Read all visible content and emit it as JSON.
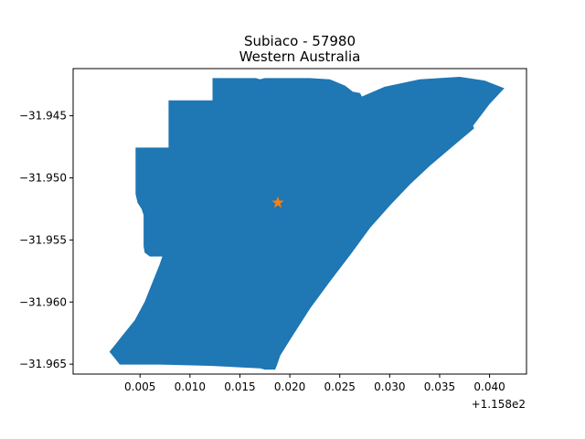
{
  "figure": {
    "title_line1": "Subiaco - 57980",
    "title_line2": "Western Australia",
    "x_offset_label": "+1.158e2"
  },
  "colors": {
    "region_fill": "#1f77b4",
    "marker": "#ff7f0e",
    "axis": "#000000",
    "background": "#ffffff"
  },
  "chart_data": {
    "type": "map",
    "title": "Subiaco - 57980\nWestern Australia",
    "x_offset": 115.8,
    "xlim": [
      -0.0017,
      0.0437
    ],
    "ylim": [
      -31.9658,
      -31.9412
    ],
    "x_ticks": [
      {
        "value": 0.005,
        "label": "0.005"
      },
      {
        "value": 0.01,
        "label": "0.010"
      },
      {
        "value": 0.015,
        "label": "0.015"
      },
      {
        "value": 0.02,
        "label": "0.020"
      },
      {
        "value": 0.025,
        "label": "0.025"
      },
      {
        "value": 0.03,
        "label": "0.030"
      },
      {
        "value": 0.035,
        "label": "0.035"
      },
      {
        "value": 0.04,
        "label": "0.040"
      }
    ],
    "y_ticks": [
      {
        "value": -31.945,
        "label": "−31.945"
      },
      {
        "value": -31.95,
        "label": "−31.950"
      },
      {
        "value": -31.955,
        "label": "−31.955"
      },
      {
        "value": -31.96,
        "label": "−31.960"
      },
      {
        "value": -31.965,
        "label": "−31.965"
      }
    ],
    "region_polygon": [
      [
        0.0123,
        -31.942
      ],
      [
        0.0166,
        -31.942
      ],
      [
        0.017,
        -31.9421
      ],
      [
        0.0175,
        -31.942
      ],
      [
        0.022,
        -31.942
      ],
      [
        0.024,
        -31.9421
      ],
      [
        0.0255,
        -31.9426
      ],
      [
        0.0263,
        -31.9431
      ],
      [
        0.027,
        -31.9432
      ],
      [
        0.0272,
        -31.9435
      ],
      [
        0.0295,
        -31.9427
      ],
      [
        0.033,
        -31.9421
      ],
      [
        0.037,
        -31.9419
      ],
      [
        0.0395,
        -31.9422
      ],
      [
        0.0414,
        -31.9428
      ],
      [
        0.04,
        -31.944
      ],
      [
        0.0383,
        -31.9458
      ],
      [
        0.0384,
        -31.946
      ],
      [
        0.034,
        -31.949
      ],
      [
        0.032,
        -31.9505
      ],
      [
        0.03,
        -31.9522
      ],
      [
        0.028,
        -31.954
      ],
      [
        0.026,
        -31.9562
      ],
      [
        0.024,
        -31.9583
      ],
      [
        0.022,
        -31.9605
      ],
      [
        0.02,
        -31.963
      ],
      [
        0.019,
        -31.9643
      ],
      [
        0.0187,
        -31.965
      ],
      [
        0.0185,
        -31.9654
      ],
      [
        0.0175,
        -31.9654
      ],
      [
        0.017,
        -31.9653
      ],
      [
        0.012,
        -31.9651
      ],
      [
        0.007,
        -31.965
      ],
      [
        0.003,
        -31.965
      ],
      [
        0.002,
        -31.964
      ],
      [
        0.003,
        -31.963
      ],
      [
        0.0045,
        -31.9615
      ],
      [
        0.0055,
        -31.96
      ],
      [
        0.006,
        -31.959
      ],
      [
        0.0065,
        -31.958
      ],
      [
        0.007,
        -31.957
      ],
      [
        0.0073,
        -31.9563
      ],
      [
        0.006,
        -31.9563
      ],
      [
        0.0055,
        -31.956
      ],
      [
        0.0054,
        -31.9555
      ],
      [
        0.0054,
        -31.953
      ],
      [
        0.0052,
        -31.9525
      ],
      [
        0.0048,
        -31.952
      ],
      [
        0.0046,
        -31.9513
      ],
      [
        0.0046,
        -31.9476
      ],
      [
        0.0079,
        -31.9476
      ],
      [
        0.0079,
        -31.9438
      ],
      [
        0.0123,
        -31.9438
      ]
    ],
    "marker_point": {
      "x": 0.0188,
      "y": -31.952,
      "shape": "star"
    }
  }
}
